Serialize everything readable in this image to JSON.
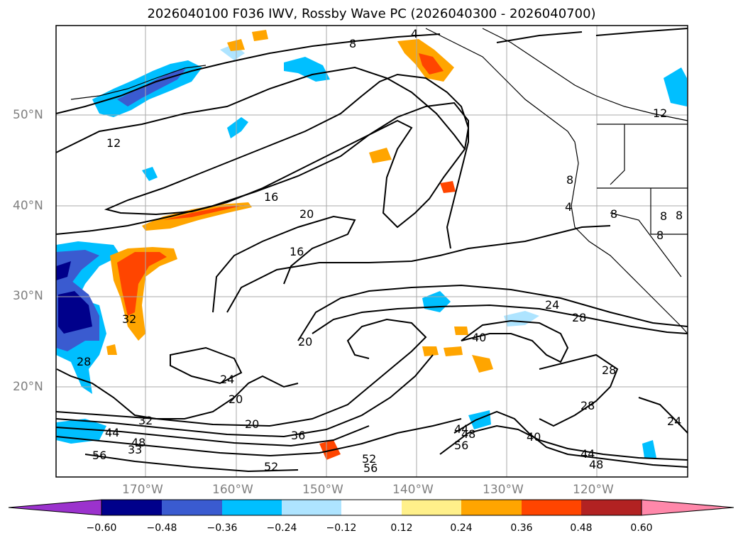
{
  "title": "2026040100 F036 IWV, Rossby Wave PC (2026040300 - 2026040700)",
  "map": {
    "lat_labels": [
      "50°N",
      "40°N",
      "30°N",
      "20°N"
    ],
    "lon_labels": [
      "170°W",
      "160°W",
      "150°W",
      "140°W",
      "130°W",
      "120°W"
    ],
    "contour_labels": [
      "4",
      "8",
      "12",
      "16",
      "20",
      "16",
      "24",
      "28",
      "40",
      "20",
      "24",
      "20",
      "20",
      "32",
      "36",
      "44",
      "48",
      "52",
      "56",
      "52",
      "56",
      "40",
      "44",
      "48",
      "28",
      "24",
      "28",
      "33",
      "44",
      "56",
      "48",
      "32",
      "28",
      "8",
      "4",
      "8",
      "8",
      "8",
      "8",
      "12"
    ]
  },
  "colorbar": {
    "ticks": [
      "−0.60",
      "−0.48",
      "−0.36",
      "−0.24",
      "−0.12",
      "0.12",
      "0.24",
      "0.36",
      "0.48",
      "0.60"
    ],
    "colors": [
      "#9b32cd",
      "#00008b",
      "#3a5bd0",
      "#00bfff",
      "#aee4ff",
      "#ffffff",
      "#fff08a",
      "#ffa500",
      "#ff4500",
      "#b22222",
      "#ff88aa"
    ]
  }
}
